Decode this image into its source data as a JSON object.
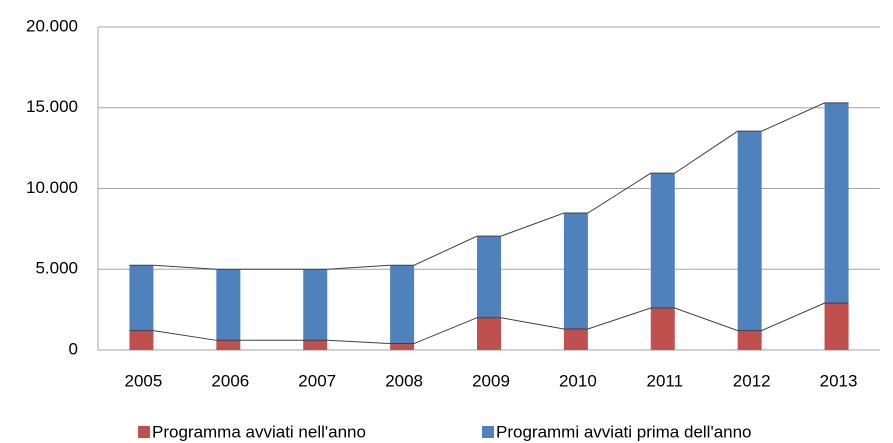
{
  "chart_data": {
    "type": "stacked_bar",
    "categories": [
      "2005",
      "2006",
      "2007",
      "2008",
      "2009",
      "2010",
      "2011",
      "2012",
      "2013"
    ],
    "series": [
      {
        "name": "Programma avviati nell'anno",
        "color": "#c0504d",
        "values": [
          1200,
          600,
          600,
          400,
          2000,
          1300,
          2600,
          1200,
          2900
        ]
      },
      {
        "name": "Programmi avviati prima dell'anno",
        "color": "#4f81bd",
        "values": [
          4050,
          4400,
          4400,
          4850,
          5050,
          7180,
          8350,
          12350,
          12400
        ]
      }
    ],
    "ylim": [
      0,
      20000
    ],
    "yticks": [
      0,
      {
        "value": 5000,
        "label": "5.000"
      },
      {
        "value": 10000,
        "label": "10.000"
      },
      {
        "value": 15000,
        "label": "15.000"
      },
      {
        "value": 20000,
        "label": "20.000"
      }
    ],
    "grid": true,
    "legend": "bottom"
  }
}
